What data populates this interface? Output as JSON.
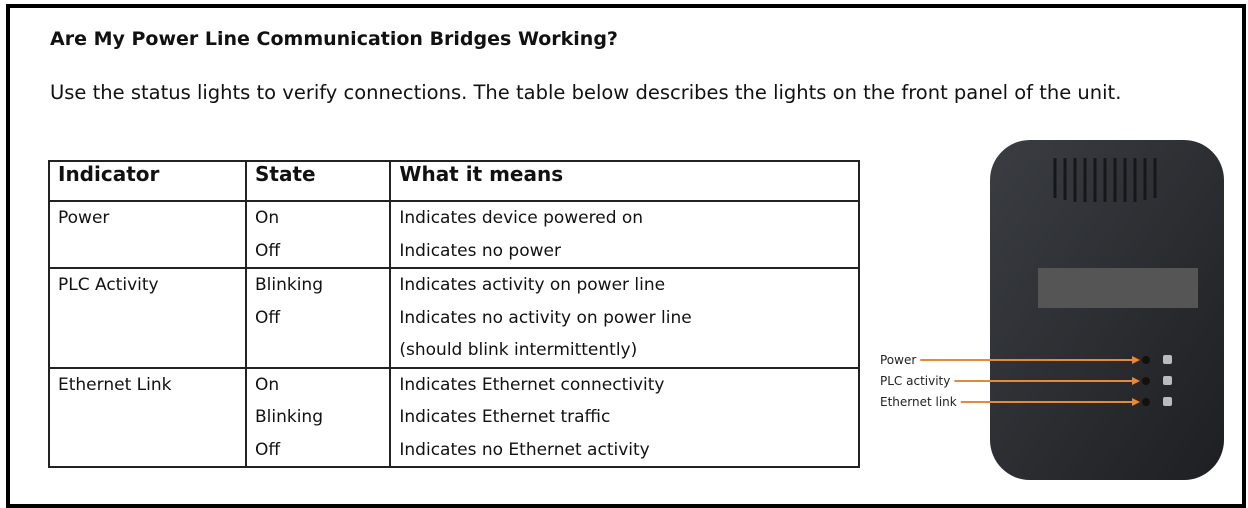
{
  "title": "Are My Power Line Communication Bridges Working?",
  "intro": "Use the status lights to verify connections. The table below describes the lights on the front panel of the unit.",
  "table": {
    "header": [
      "Indicator",
      "State",
      "What it means"
    ],
    "rows": [
      {
        "indicator": "Power",
        "states": [
          "On",
          "Off"
        ],
        "meanings": [
          "Indicates device powered on",
          "Indicates no power"
        ]
      },
      {
        "indicator": "PLC Activity",
        "states": [
          "Blinking",
          "Off"
        ],
        "meanings": [
          "Indicates activity on power line",
          "Indicates no activity on power line",
          "(should blink intermittently)"
        ]
      },
      {
        "indicator": "Ethernet Link",
        "states": [
          "On",
          "Blinking",
          "Off"
        ],
        "meanings": [
          "Indicates Ethernet connectivity",
          "Indicates Ethernet traffic",
          "Indicates no Ethernet activity"
        ]
      }
    ]
  },
  "device": {
    "labels": [
      "Power",
      "PLC activity",
      "Ethernet link"
    ]
  }
}
